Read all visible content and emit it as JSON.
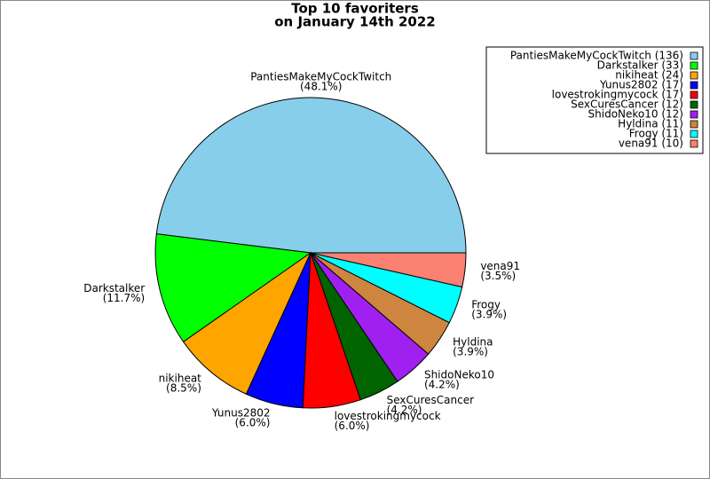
{
  "chart_data": {
    "type": "pie",
    "title": "Top 10 favoriters",
    "subtitle": "on January 14th 2022",
    "categories": [
      "PantiesMakeMyCockTwitch",
      "Darkstalker",
      "nikiheat",
      "Yunus2802",
      "lovestrokingmycock",
      "SexCuresCancer",
      "ShidoNeko10",
      "Hyldina",
      "Frogy",
      "vena91"
    ],
    "values": [
      136,
      33,
      24,
      17,
      17,
      12,
      12,
      11,
      11,
      10
    ],
    "value_labels": [
      "(48.1%)",
      "(11.7%)",
      "(8.5%)",
      "(6.0%)",
      "(6.0%)",
      "(4.2%)",
      "(4.2%)",
      "(3.9%)",
      "(3.9%)",
      "(3.5%)"
    ],
    "legend_labels": [
      "PantiesMakeMyCockTwitch (136)",
      "Darkstalker (33)",
      "nikiheat (24)",
      "Yunus2802 (17)",
      "lovestrokingmycock (17)",
      "SexCuresCancer (12)",
      "ShidoNeko10 (12)",
      "Hyldina (11)",
      "Frogy (11)",
      "vena91 (10)"
    ],
    "colors": [
      "#87ceeb",
      "#00ff00",
      "#ffa500",
      "#0000ff",
      "#ff0000",
      "#006400",
      "#a020f0",
      "#cd853f",
      "#00ffff",
      "#fa8072"
    ],
    "legend": "upper right"
  }
}
